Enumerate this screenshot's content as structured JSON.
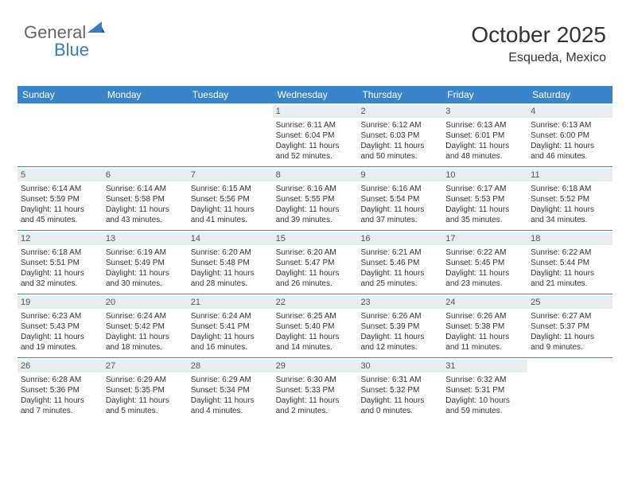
{
  "logo": {
    "text1": "General",
    "text2": "Blue"
  },
  "header": {
    "month": "October 2025",
    "location": "Esqueda, Mexico"
  },
  "colors": {
    "header_bg": "#3a85c9",
    "header_text": "#ffffff",
    "daynum_bg": "#e8edf0",
    "daynum_text": "#555555",
    "body_text": "#333333",
    "border": "#3a85c9",
    "logo_gray": "#666666",
    "logo_blue": "#3a7ab8"
  },
  "fonts": {
    "month_title_size": 28,
    "location_size": 16,
    "dayheader_size": 12,
    "daynum_size": 11,
    "daytext_size": 10
  },
  "dayheaders": [
    "Sunday",
    "Monday",
    "Tuesday",
    "Wednesday",
    "Thursday",
    "Friday",
    "Saturday"
  ],
  "weeks": [
    [
      {
        "num": "",
        "sunrise": "",
        "sunset": "",
        "daylight": ""
      },
      {
        "num": "",
        "sunrise": "",
        "sunset": "",
        "daylight": ""
      },
      {
        "num": "",
        "sunrise": "",
        "sunset": "",
        "daylight": ""
      },
      {
        "num": "1",
        "sunrise": "Sunrise: 6:11 AM",
        "sunset": "Sunset: 6:04 PM",
        "daylight": "Daylight: 11 hours and 52 minutes."
      },
      {
        "num": "2",
        "sunrise": "Sunrise: 6:12 AM",
        "sunset": "Sunset: 6:03 PM",
        "daylight": "Daylight: 11 hours and 50 minutes."
      },
      {
        "num": "3",
        "sunrise": "Sunrise: 6:13 AM",
        "sunset": "Sunset: 6:01 PM",
        "daylight": "Daylight: 11 hours and 48 minutes."
      },
      {
        "num": "4",
        "sunrise": "Sunrise: 6:13 AM",
        "sunset": "Sunset: 6:00 PM",
        "daylight": "Daylight: 11 hours and 46 minutes."
      }
    ],
    [
      {
        "num": "5",
        "sunrise": "Sunrise: 6:14 AM",
        "sunset": "Sunset: 5:59 PM",
        "daylight": "Daylight: 11 hours and 45 minutes."
      },
      {
        "num": "6",
        "sunrise": "Sunrise: 6:14 AM",
        "sunset": "Sunset: 5:58 PM",
        "daylight": "Daylight: 11 hours and 43 minutes."
      },
      {
        "num": "7",
        "sunrise": "Sunrise: 6:15 AM",
        "sunset": "Sunset: 5:56 PM",
        "daylight": "Daylight: 11 hours and 41 minutes."
      },
      {
        "num": "8",
        "sunrise": "Sunrise: 6:16 AM",
        "sunset": "Sunset: 5:55 PM",
        "daylight": "Daylight: 11 hours and 39 minutes."
      },
      {
        "num": "9",
        "sunrise": "Sunrise: 6:16 AM",
        "sunset": "Sunset: 5:54 PM",
        "daylight": "Daylight: 11 hours and 37 minutes."
      },
      {
        "num": "10",
        "sunrise": "Sunrise: 6:17 AM",
        "sunset": "Sunset: 5:53 PM",
        "daylight": "Daylight: 11 hours and 35 minutes."
      },
      {
        "num": "11",
        "sunrise": "Sunrise: 6:18 AM",
        "sunset": "Sunset: 5:52 PM",
        "daylight": "Daylight: 11 hours and 34 minutes."
      }
    ],
    [
      {
        "num": "12",
        "sunrise": "Sunrise: 6:18 AM",
        "sunset": "Sunset: 5:51 PM",
        "daylight": "Daylight: 11 hours and 32 minutes."
      },
      {
        "num": "13",
        "sunrise": "Sunrise: 6:19 AM",
        "sunset": "Sunset: 5:49 PM",
        "daylight": "Daylight: 11 hours and 30 minutes."
      },
      {
        "num": "14",
        "sunrise": "Sunrise: 6:20 AM",
        "sunset": "Sunset: 5:48 PM",
        "daylight": "Daylight: 11 hours and 28 minutes."
      },
      {
        "num": "15",
        "sunrise": "Sunrise: 6:20 AM",
        "sunset": "Sunset: 5:47 PM",
        "daylight": "Daylight: 11 hours and 26 minutes."
      },
      {
        "num": "16",
        "sunrise": "Sunrise: 6:21 AM",
        "sunset": "Sunset: 5:46 PM",
        "daylight": "Daylight: 11 hours and 25 minutes."
      },
      {
        "num": "17",
        "sunrise": "Sunrise: 6:22 AM",
        "sunset": "Sunset: 5:45 PM",
        "daylight": "Daylight: 11 hours and 23 minutes."
      },
      {
        "num": "18",
        "sunrise": "Sunrise: 6:22 AM",
        "sunset": "Sunset: 5:44 PM",
        "daylight": "Daylight: 11 hours and 21 minutes."
      }
    ],
    [
      {
        "num": "19",
        "sunrise": "Sunrise: 6:23 AM",
        "sunset": "Sunset: 5:43 PM",
        "daylight": "Daylight: 11 hours and 19 minutes."
      },
      {
        "num": "20",
        "sunrise": "Sunrise: 6:24 AM",
        "sunset": "Sunset: 5:42 PM",
        "daylight": "Daylight: 11 hours and 18 minutes."
      },
      {
        "num": "21",
        "sunrise": "Sunrise: 6:24 AM",
        "sunset": "Sunset: 5:41 PM",
        "daylight": "Daylight: 11 hours and 16 minutes."
      },
      {
        "num": "22",
        "sunrise": "Sunrise: 6:25 AM",
        "sunset": "Sunset: 5:40 PM",
        "daylight": "Daylight: 11 hours and 14 minutes."
      },
      {
        "num": "23",
        "sunrise": "Sunrise: 6:26 AM",
        "sunset": "Sunset: 5:39 PM",
        "daylight": "Daylight: 11 hours and 12 minutes."
      },
      {
        "num": "24",
        "sunrise": "Sunrise: 6:26 AM",
        "sunset": "Sunset: 5:38 PM",
        "daylight": "Daylight: 11 hours and 11 minutes."
      },
      {
        "num": "25",
        "sunrise": "Sunrise: 6:27 AM",
        "sunset": "Sunset: 5:37 PM",
        "daylight": "Daylight: 11 hours and 9 minutes."
      }
    ],
    [
      {
        "num": "26",
        "sunrise": "Sunrise: 6:28 AM",
        "sunset": "Sunset: 5:36 PM",
        "daylight": "Daylight: 11 hours and 7 minutes."
      },
      {
        "num": "27",
        "sunrise": "Sunrise: 6:29 AM",
        "sunset": "Sunset: 5:35 PM",
        "daylight": "Daylight: 11 hours and 5 minutes."
      },
      {
        "num": "28",
        "sunrise": "Sunrise: 6:29 AM",
        "sunset": "Sunset: 5:34 PM",
        "daylight": "Daylight: 11 hours and 4 minutes."
      },
      {
        "num": "29",
        "sunrise": "Sunrise: 6:30 AM",
        "sunset": "Sunset: 5:33 PM",
        "daylight": "Daylight: 11 hours and 2 minutes."
      },
      {
        "num": "30",
        "sunrise": "Sunrise: 6:31 AM",
        "sunset": "Sunset: 5:32 PM",
        "daylight": "Daylight: 11 hours and 0 minutes."
      },
      {
        "num": "31",
        "sunrise": "Sunrise: 6:32 AM",
        "sunset": "Sunset: 5:31 PM",
        "daylight": "Daylight: 10 hours and 59 minutes."
      },
      {
        "num": "",
        "sunrise": "",
        "sunset": "",
        "daylight": ""
      }
    ]
  ]
}
